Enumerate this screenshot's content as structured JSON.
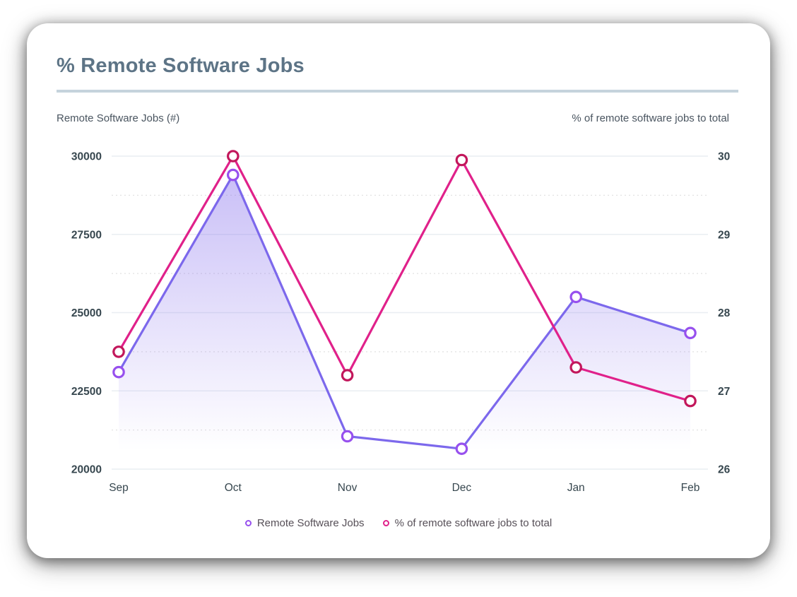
{
  "card": {
    "title": "% Remote Software Jobs",
    "left_axis_caption": "Remote Software Jobs (#)",
    "right_axis_caption": "% of remote software jobs to total"
  },
  "colors": {
    "title": "#5D7486",
    "divider": "#C5D3DC",
    "axis_text": "#37474F",
    "caption_text": "#4A5560",
    "grid_major": "#E9EEF2",
    "grid_minor": "#E2E2E2",
    "purple_line": "#7C68EC",
    "purple_marker": "#9750EE",
    "purple_fill": "#8D77EE",
    "pink_line": "#E0218A",
    "pink_marker": "#C2175B",
    "legend_text": "#564F57"
  },
  "chart_data": {
    "type": "line",
    "title": "% Remote Software Jobs",
    "categories": [
      "Sep",
      "Oct",
      "Nov",
      "Dec",
      "Jan",
      "Feb"
    ],
    "series": [
      {
        "name": "Remote Software Jobs",
        "axis": "left",
        "color": "purple",
        "area": true,
        "values": [
          23100,
          29400,
          21050,
          20650,
          25500,
          24350
        ]
      },
      {
        "name": "% of remote software jobs to total",
        "axis": "right",
        "color": "pink",
        "area": false,
        "values": [
          27.5,
          30,
          27.2,
          29.95,
          27.3,
          26.87
        ]
      }
    ],
    "left_axis": {
      "label": "Remote Software Jobs (#)",
      "min": 20000,
      "max": 30000,
      "ticks": [
        30000,
        27500,
        25000,
        22500,
        20000
      ],
      "minor_gridlines": [
        28750,
        26250,
        23750,
        21250
      ]
    },
    "right_axis": {
      "label": "% of remote software jobs to total",
      "min": 26,
      "max": 30,
      "ticks": [
        30,
        29,
        28,
        27,
        26
      ]
    },
    "grid": true,
    "legend_position": "bottom"
  },
  "legend": {
    "items": [
      {
        "label": "Remote Software Jobs",
        "color": "purple"
      },
      {
        "label": "% of remote software jobs to total",
        "color": "pink"
      }
    ]
  }
}
